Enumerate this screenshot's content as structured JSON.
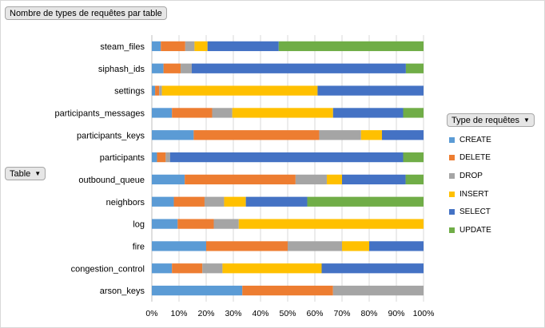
{
  "title_button": {
    "label": "Nombre de types de requêtes par table"
  },
  "row_field_button": {
    "label": "Table"
  },
  "legend_button": {
    "label": "Type de requêtes"
  },
  "colors": {
    "CREATE": "#5b9bd5",
    "DELETE": "#ed7d31",
    "DROP": "#a5a5a5",
    "INSERT": "#ffc000",
    "SELECT": "#4472c4",
    "UPDATE": "#70ad47"
  },
  "chart_data": {
    "type": "bar",
    "orientation": "horizontal",
    "stacked": "percent",
    "title": "",
    "xlabel": "",
    "ylabel": "",
    "xlim": [
      0,
      100
    ],
    "x_ticks": [
      "0%",
      "10%",
      "20%",
      "30%",
      "40%",
      "50%",
      "60%",
      "70%",
      "80%",
      "90%",
      "100%"
    ],
    "grid": true,
    "legend_position": "right",
    "categories": [
      "steam_files",
      "siphash_ids",
      "settings",
      "participants_messages",
      "participants_keys",
      "participants",
      "outbound_queue",
      "neighbors",
      "log",
      "fire",
      "congestion_control",
      "arson_keys"
    ],
    "series": [
      {
        "name": "CREATE",
        "values": [
          3.3,
          4.3,
          1.2,
          7.4,
          15.4,
          1.9,
          12.1,
          8.1,
          9.5,
          20,
          7.4,
          33.3
        ]
      },
      {
        "name": "DELETE",
        "values": [
          9,
          6.3,
          1.5,
          14.8,
          46.2,
          3.2,
          40.8,
          11.3,
          13.3,
          30,
          11.2,
          33.4
        ]
      },
      {
        "name": "DROP",
        "values": [
          3.4,
          4.1,
          1,
          7.4,
          15.4,
          1.6,
          11.5,
          7.2,
          9.2,
          20,
          7.4,
          33.3
        ]
      },
      {
        "name": "INSERT",
        "values": [
          4.8,
          0,
          57.3,
          37.1,
          7.7,
          0,
          5.6,
          8,
          68,
          10,
          36.5,
          0
        ]
      },
      {
        "name": "SELECT",
        "values": [
          26.2,
          78.8,
          39,
          25.8,
          15.3,
          85.8,
          23.4,
          22.6,
          0,
          20,
          37.5,
          0
        ]
      },
      {
        "name": "UPDATE",
        "values": [
          53.3,
          6.5,
          0,
          7.5,
          0,
          7.5,
          6.6,
          42.8,
          0,
          0,
          0,
          0
        ]
      }
    ]
  }
}
